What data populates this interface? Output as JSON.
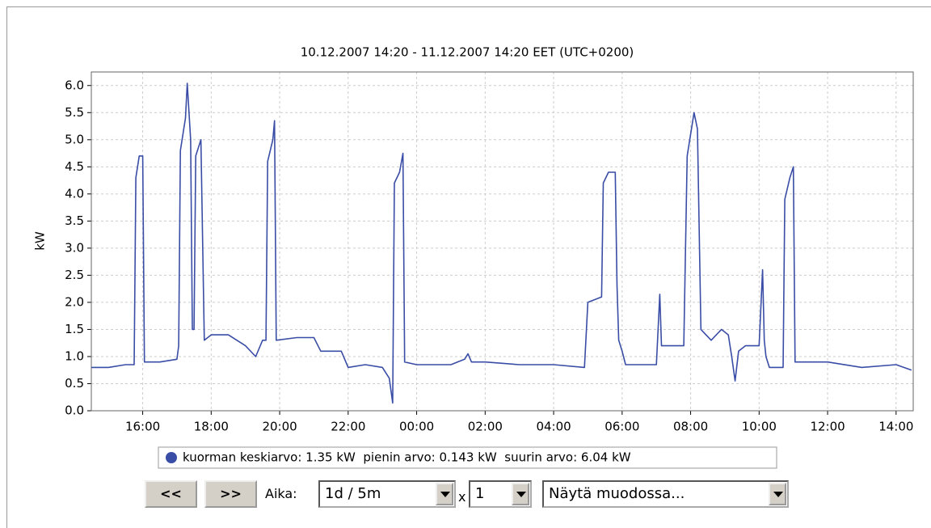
{
  "chart_data": {
    "type": "line",
    "title": "10.12.2007 14:20 - 11.12.2007 14:20 EET (UTC+0200)",
    "ylabel": "kW",
    "x": [
      14.5,
      15.0,
      15.5,
      15.75,
      15.8,
      15.9,
      16.0,
      16.05,
      16.5,
      17.0,
      17.05,
      17.1,
      17.25,
      17.3,
      17.4,
      17.45,
      17.5,
      17.55,
      17.7,
      17.8,
      18.0,
      18.5,
      19.0,
      19.3,
      19.5,
      19.6,
      19.65,
      19.8,
      19.85,
      19.9,
      20.5,
      21.0,
      21.2,
      21.8,
      22.0,
      22.5,
      23.0,
      23.2,
      23.3,
      23.35,
      23.5,
      23.6,
      23.65,
      24.0,
      25.0,
      25.4,
      25.5,
      25.6,
      26.0,
      27.0,
      28.0,
      28.9,
      29.0,
      29.4,
      29.45,
      29.6,
      29.8,
      29.85,
      29.9,
      30.0,
      30.1,
      31.0,
      31.1,
      31.15,
      31.5,
      31.8,
      31.9,
      32.1,
      32.2,
      32.3,
      32.6,
      32.9,
      33.1,
      33.2,
      33.3,
      33.4,
      33.6,
      34.0,
      34.1,
      34.15,
      34.2,
      34.3,
      34.7,
      34.75,
      34.9,
      35.0,
      35.05,
      36.0,
      37.0,
      38.0,
      38.45
    ],
    "series": [
      {
        "name": "kuorman keskiarvo: 1.35 kW  pienin arvo: 0.143 kW  suurin arvo: 6.04 kW",
        "color": "#3a4da6",
        "values": [
          0.8,
          0.8,
          0.85,
          0.85,
          4.3,
          4.7,
          4.7,
          0.9,
          0.9,
          0.95,
          1.2,
          4.8,
          5.4,
          6.04,
          5.0,
          1.5,
          1.5,
          4.7,
          5.0,
          1.3,
          1.4,
          1.4,
          1.2,
          1.0,
          1.3,
          1.3,
          4.6,
          5.0,
          5.35,
          1.3,
          1.35,
          1.35,
          1.1,
          1.1,
          0.8,
          0.85,
          0.8,
          0.6,
          0.143,
          4.2,
          4.4,
          4.75,
          0.9,
          0.85,
          0.85,
          0.95,
          1.05,
          0.9,
          0.9,
          0.85,
          0.85,
          0.8,
          2.0,
          2.1,
          4.2,
          4.4,
          4.4,
          2.3,
          1.3,
          1.1,
          0.85,
          0.85,
          2.15,
          1.2,
          1.2,
          1.2,
          4.7,
          5.5,
          5.2,
          1.5,
          1.3,
          1.5,
          1.4,
          1.0,
          0.55,
          1.1,
          1.2,
          1.2,
          2.6,
          1.3,
          1.0,
          0.8,
          0.8,
          3.9,
          4.3,
          4.5,
          0.9,
          0.9,
          0.8,
          0.85,
          0.75
        ]
      }
    ],
    "xlim": [
      14.5,
      38.5
    ],
    "xticks": [
      {
        "value": 16,
        "label": "16:00"
      },
      {
        "value": 18,
        "label": "18:00"
      },
      {
        "value": 20,
        "label": "20:00"
      },
      {
        "value": 22,
        "label": "22:00"
      },
      {
        "value": 24,
        "label": "00:00"
      },
      {
        "value": 26,
        "label": "02:00"
      },
      {
        "value": 28,
        "label": "04:00"
      },
      {
        "value": 30,
        "label": "06:00"
      },
      {
        "value": 32,
        "label": "08:00"
      },
      {
        "value": 34,
        "label": "10:00"
      },
      {
        "value": 36,
        "label": "12:00"
      },
      {
        "value": 38,
        "label": "14:00"
      }
    ],
    "ylim": [
      0,
      6.25
    ],
    "yticks": [
      {
        "value": 0,
        "label": "0.0"
      },
      0.5,
      {
        "value": 1,
        "label": "1.0"
      },
      1.5,
      {
        "value": 2,
        "label": "2.0"
      },
      2.5,
      {
        "value": 3,
        "label": "3.0"
      },
      3.5,
      {
        "value": 4,
        "label": "4.0"
      },
      4.5,
      {
        "value": 5,
        "label": "5.0"
      },
      5.5,
      {
        "value": 6,
        "label": "6.0"
      }
    ],
    "grid": true
  },
  "controls": {
    "prev": "<<",
    "next": ">>",
    "time_label": "Aika:",
    "range_select": "1d / 5m",
    "times": "x",
    "count_select": "1",
    "format_select": "Näytä muodossa..."
  }
}
